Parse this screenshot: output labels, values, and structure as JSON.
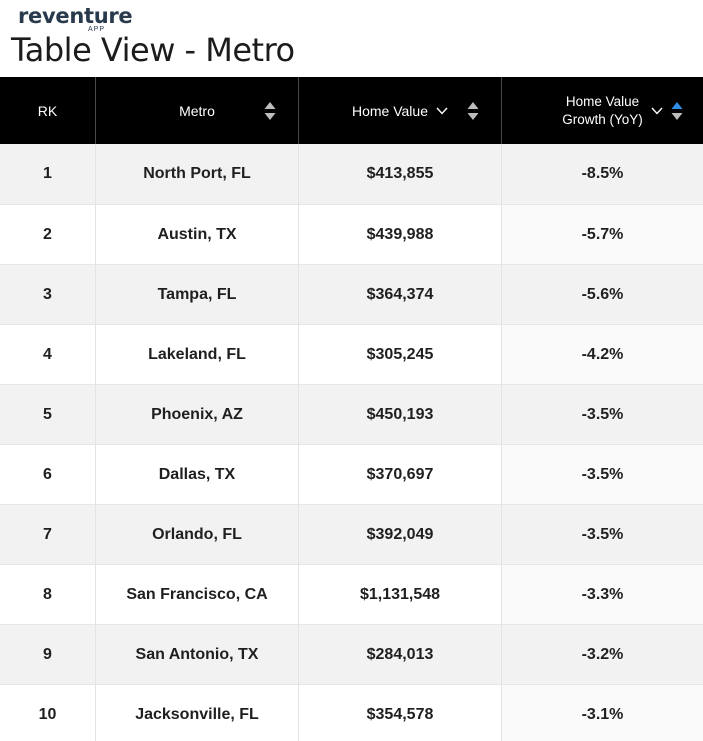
{
  "brand": {
    "logo": "reventure",
    "logo_sub": "APP"
  },
  "page_title": "Table View - Metro",
  "colors": {
    "header_bg": "#000000",
    "sort_active": "#2f8fe6",
    "row_alt": "#f2f2f2"
  },
  "table": {
    "columns": [
      {
        "label": "RK"
      },
      {
        "label": "Metro"
      },
      {
        "label": "Home Value"
      },
      {
        "label_line1": "Home Value",
        "label_line2": "Growth (YoY)"
      }
    ],
    "rows": [
      {
        "rank": "1",
        "metro": "North Port, FL",
        "home_value": "$413,855",
        "growth": "-8.5%"
      },
      {
        "rank": "2",
        "metro": "Austin, TX",
        "home_value": "$439,988",
        "growth": "-5.7%"
      },
      {
        "rank": "3",
        "metro": "Tampa, FL",
        "home_value": "$364,374",
        "growth": "-5.6%"
      },
      {
        "rank": "4",
        "metro": "Lakeland, FL",
        "home_value": "$305,245",
        "growth": "-4.2%"
      },
      {
        "rank": "5",
        "metro": "Phoenix, AZ",
        "home_value": "$450,193",
        "growth": "-3.5%"
      },
      {
        "rank": "6",
        "metro": "Dallas, TX",
        "home_value": "$370,697",
        "growth": "-3.5%"
      },
      {
        "rank": "7",
        "metro": "Orlando, FL",
        "home_value": "$392,049",
        "growth": "-3.5%"
      },
      {
        "rank": "8",
        "metro": "San Francisco, CA",
        "home_value": "$1,131,548",
        "growth": "-3.3%"
      },
      {
        "rank": "9",
        "metro": "San Antonio, TX",
        "home_value": "$284,013",
        "growth": "-3.2%"
      },
      {
        "rank": "10",
        "metro": "Jacksonville, FL",
        "home_value": "$354,578",
        "growth": "-3.1%"
      }
    ]
  }
}
